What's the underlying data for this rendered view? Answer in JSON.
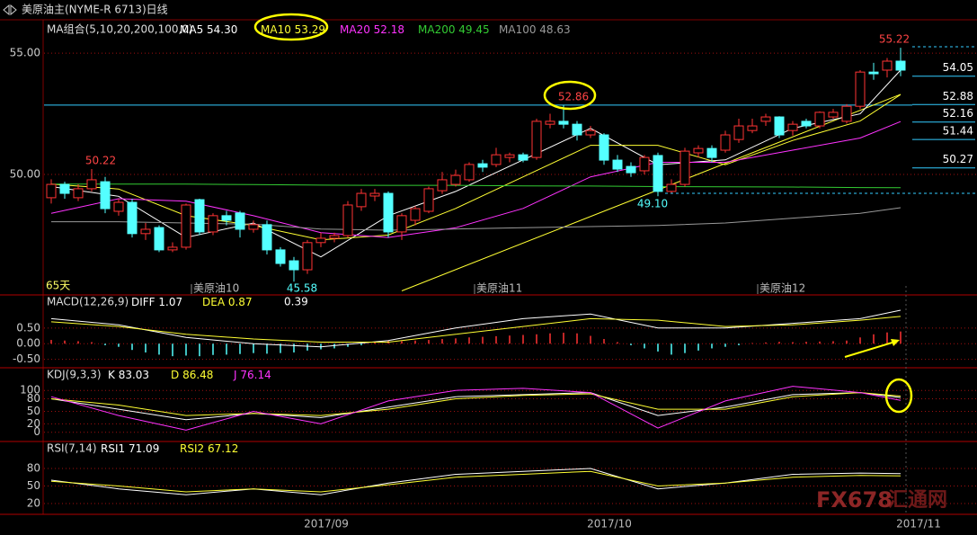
{
  "header": {
    "title": "美原油主(NYME-R 6713)日线"
  },
  "watermark": [
    "FX678",
    "汇通网"
  ],
  "x_labels": [
    "2017/09",
    "2017/10",
    "2017/11"
  ],
  "chart_data": [
    {
      "type": "candlestick",
      "legend_title": "MA组合(5,10,20,200,100,0)",
      "up_color": "#ff3333",
      "down_color": "#54ffff",
      "open": [
        49.04,
        49.59,
        49.04,
        49.41,
        49.7,
        48.48,
        48.85,
        47.56,
        47.81,
        46.89,
        47.0,
        48.96,
        47.63,
        48.3,
        48.41,
        47.74,
        47.93,
        46.89,
        46.44,
        46.07,
        47.19,
        47.37,
        47.48,
        48.67,
        49.11,
        49.22,
        47.63,
        48.11,
        48.48,
        49.33,
        49.59,
        49.78,
        50.44,
        50.41,
        50.7,
        50.81,
        50.7,
        52.07,
        52.19,
        52.07,
        51.63,
        51.63,
        50.59,
        50.33,
        50.15,
        50.78,
        49.3,
        49.59,
        50.89,
        51.07,
        51.0,
        51.44,
        51.81,
        52.19,
        52.37,
        51.81,
        52.19,
        52.0,
        52.37,
        52.19,
        52.81,
        54.22,
        54.3,
        54.67
      ],
      "high": [
        49.8,
        49.7,
        49.6,
        50.22,
        49.9,
        49.0,
        49.0,
        48.0,
        47.9,
        47.2,
        48.8,
        49.0,
        48.4,
        48.5,
        48.5,
        48.1,
        48.1,
        47.0,
        46.6,
        47.3,
        47.6,
        47.6,
        48.9,
        49.4,
        49.4,
        49.3,
        48.4,
        48.7,
        49.5,
        50.1,
        50.2,
        50.5,
        50.6,
        51.1,
        50.9,
        50.9,
        52.3,
        52.5,
        52.86,
        52.2,
        52.0,
        51.7,
        50.8,
        50.5,
        50.8,
        50.9,
        49.8,
        51.1,
        51.2,
        51.2,
        51.8,
        52.3,
        52.3,
        52.5,
        52.4,
        52.2,
        52.3,
        52.6,
        52.7,
        52.9,
        54.3,
        54.6,
        54.8,
        55.22
      ],
      "low": [
        48.8,
        49.0,
        48.9,
        49.3,
        48.4,
        48.3,
        47.4,
        47.3,
        46.8,
        46.8,
        46.9,
        47.5,
        47.5,
        47.9,
        47.4,
        47.6,
        46.7,
        46.2,
        45.58,
        45.9,
        47.0,
        47.2,
        47.4,
        48.5,
        48.9,
        47.4,
        47.3,
        47.9,
        48.4,
        49.2,
        49.5,
        49.7,
        50.1,
        50.3,
        50.5,
        50.5,
        50.6,
        51.9,
        51.9,
        51.4,
        51.5,
        50.4,
        50.1,
        49.9,
        50.0,
        49.1,
        49.2,
        49.5,
        50.7,
        50.5,
        50.9,
        51.3,
        51.7,
        52.0,
        51.5,
        51.6,
        51.9,
        51.9,
        52.3,
        52.1,
        52.7,
        53.9,
        54.0,
        54.05
      ],
      "close": [
        49.59,
        49.22,
        49.41,
        49.78,
        48.59,
        48.85,
        47.56,
        47.74,
        46.89,
        47.0,
        48.74,
        47.63,
        48.3,
        48.11,
        47.74,
        47.93,
        46.89,
        46.33,
        46.07,
        47.19,
        47.37,
        47.48,
        48.74,
        49.22,
        49.22,
        47.63,
        48.3,
        48.59,
        49.41,
        49.78,
        49.96,
        50.41,
        50.3,
        50.81,
        50.81,
        50.59,
        52.19,
        52.19,
        52.07,
        51.63,
        51.81,
        50.59,
        50.22,
        50.07,
        50.7,
        49.3,
        49.59,
        50.96,
        51.07,
        50.7,
        51.63,
        52.0,
        52.0,
        52.37,
        51.63,
        52.07,
        52.0,
        52.56,
        52.56,
        52.81,
        54.22,
        54.15,
        54.67,
        54.3
      ],
      "ylim": [
        45.07,
        56.19
      ],
      "yticks": [
        {
          "value": 50,
          "label": "50.00"
        },
        {
          "value": 55,
          "label": "55.00"
        }
      ],
      "lines": [
        {
          "name": "MA5",
          "legend_value": "54.30",
          "color": "#ffffff",
          "x": [
            0,
            5,
            10,
            15,
            20,
            25,
            30,
            35,
            40,
            45,
            50,
            55,
            60,
            63
          ],
          "values": [
            49.5,
            49.1,
            47.4,
            48.0,
            46.6,
            48.3,
            49.3,
            50.6,
            51.9,
            50.4,
            50.6,
            51.9,
            52.5,
            54.3
          ]
        },
        {
          "name": "MA10",
          "legend_value": "53.29",
          "color": "#ffff33",
          "x": [
            0,
            5,
            10,
            15,
            20,
            25,
            30,
            35,
            40,
            45,
            50,
            55,
            60,
            63
          ],
          "values": [
            49.6,
            49.4,
            48.3,
            47.9,
            47.3,
            47.5,
            48.6,
            49.9,
            51.2,
            51.2,
            50.4,
            51.4,
            52.2,
            53.29
          ]
        },
        {
          "name": "MA20",
          "legend_value": "52.18",
          "color": "#ff33ff",
          "x": [
            0,
            5,
            10,
            15,
            20,
            25,
            30,
            35,
            40,
            45,
            50,
            55,
            60,
            63
          ],
          "values": [
            48.4,
            49.0,
            48.9,
            48.3,
            47.6,
            47.4,
            47.8,
            48.6,
            49.9,
            50.5,
            50.5,
            51.0,
            51.5,
            52.18
          ]
        },
        {
          "name": "MA200",
          "legend_value": "49.45",
          "color": "#33cc33",
          "x": [
            0,
            5,
            10,
            15,
            20,
            25,
            30,
            35,
            40,
            45,
            50,
            55,
            60,
            63
          ],
          "values": [
            49.6,
            49.6,
            49.6,
            49.58,
            49.56,
            49.55,
            49.55,
            49.53,
            49.52,
            49.5,
            49.49,
            49.48,
            49.46,
            49.45
          ]
        },
        {
          "name": "MA100",
          "legend_value": "48.63",
          "color": "#999999",
          "x": [
            0,
            5,
            10,
            15,
            20,
            25,
            30,
            35,
            40,
            45,
            50,
            55,
            60,
            63
          ],
          "values": [
            48.05,
            48.05,
            48.0,
            47.95,
            47.75,
            47.7,
            47.75,
            47.8,
            47.85,
            47.9,
            48.0,
            48.2,
            48.4,
            48.63
          ]
        }
      ],
      "annotations": [
        "50.22",
        "52.86",
        "55.22",
        "49.10",
        "45.58"
      ],
      "period_label": "65天",
      "month_labels": [
        "美原油10",
        "美原油11",
        "美原油12"
      ],
      "levels": [
        54.05,
        52.88,
        52.16,
        51.44,
        50.27
      ],
      "levels_color": "#33ccff",
      "hline": 52.86,
      "trendline": {
        "color": "#ffff33",
        "x": [
          26,
          63
        ],
        "values": [
          45.2,
          53.3
        ]
      }
    },
    {
      "type": "macd",
      "title": "MACD(12,26,9)",
      "ylim": [
        -0.74,
        1.5
      ],
      "yticks": [
        {
          "value": -0.5,
          "label": "-0.50"
        },
        {
          "value": 0,
          "label": "0.00"
        },
        {
          "value": 0.5,
          "label": "0.50"
        }
      ],
      "lines": [
        {
          "name": "DIFF",
          "legend_value": "1.07",
          "color": "#ffffff",
          "x": [
            0,
            5,
            10,
            15,
            20,
            25,
            30,
            35,
            40,
            45,
            50,
            55,
            60,
            63
          ],
          "values": [
            0.8,
            0.6,
            0.2,
            0.0,
            -0.1,
            0.1,
            0.5,
            0.8,
            0.95,
            0.5,
            0.5,
            0.65,
            0.8,
            1.07
          ]
        },
        {
          "name": "DEA",
          "legend_value": "0.87",
          "color": "#ffff33",
          "x": [
            0,
            5,
            10,
            15,
            20,
            25,
            30,
            35,
            40,
            45,
            50,
            55,
            60,
            63
          ],
          "values": [
            0.7,
            0.55,
            0.3,
            0.15,
            0.05,
            0.05,
            0.3,
            0.55,
            0.8,
            0.75,
            0.55,
            0.6,
            0.75,
            0.87
          ]
        }
      ],
      "histogram": {
        "legend_value": "0.39",
        "up_color": "#ff3333",
        "down_color": "#54ffff",
        "values": [
          0.12,
          0.1,
          0.08,
          0.05,
          -0.05,
          -0.1,
          -0.2,
          -0.28,
          -0.35,
          -0.4,
          -0.38,
          -0.4,
          -0.36,
          -0.35,
          -0.33,
          -0.3,
          -0.32,
          -0.3,
          -0.28,
          -0.22,
          -0.18,
          -0.15,
          -0.1,
          -0.05,
          0.05,
          0.1,
          0.08,
          0.1,
          0.12,
          0.15,
          0.17,
          0.2,
          0.22,
          0.24,
          0.26,
          0.28,
          0.3,
          0.33,
          0.35,
          0.33,
          0.25,
          0.15,
          0.05,
          -0.05,
          -0.15,
          -0.25,
          -0.35,
          -0.3,
          -0.22,
          -0.15,
          -0.1,
          -0.05,
          0.02,
          0.04,
          0.06,
          0.05,
          0.06,
          0.07,
          0.08,
          0.1,
          0.2,
          0.3,
          0.36,
          0.39
        ]
      }
    },
    {
      "type": "line",
      "title": "KDJ(9,3,3)",
      "ylim": [
        -20,
        150
      ],
      "yticks": [
        0,
        20,
        50,
        80,
        100
      ],
      "lines": [
        {
          "name": "K",
          "legend_value": "83.03",
          "color": "#ffffff",
          "x": [
            0,
            5,
            10,
            15,
            20,
            25,
            30,
            35,
            40,
            45,
            50,
            55,
            60,
            63
          ],
          "values": [
            80,
            55,
            30,
            45,
            35,
            60,
            85,
            90,
            95,
            40,
            60,
            90,
            95,
            83.03
          ]
        },
        {
          "name": "D",
          "legend_value": "86.48",
          "color": "#ffff33",
          "x": [
            0,
            5,
            10,
            15,
            20,
            25,
            30,
            35,
            40,
            45,
            50,
            55,
            60,
            63
          ],
          "values": [
            80,
            65,
            40,
            45,
            40,
            55,
            80,
            88,
            92,
            55,
            55,
            85,
            95,
            86.48
          ]
        },
        {
          "name": "J",
          "legend_value": "76.14",
          "color": "#ff33ff",
          "x": [
            0,
            5,
            10,
            15,
            20,
            25,
            30,
            35,
            40,
            45,
            50,
            55,
            60,
            63
          ],
          "values": [
            85,
            40,
            5,
            50,
            20,
            75,
            100,
            105,
            95,
            10,
            75,
            110,
            95,
            76.14
          ]
        }
      ]
    },
    {
      "type": "line",
      "title": "RSI(7,14)",
      "ylim": [
        3,
        123
      ],
      "yticks": [
        20,
        50,
        80
      ],
      "lines": [
        {
          "name": "RSI1",
          "legend_value": "71.09",
          "color": "#ffffff",
          "x": [
            0,
            5,
            10,
            15,
            20,
            25,
            30,
            35,
            40,
            45,
            50,
            55,
            60,
            63
          ],
          "values": [
            60,
            45,
            35,
            45,
            35,
            55,
            70,
            75,
            80,
            45,
            55,
            70,
            72,
            71.09
          ]
        },
        {
          "name": "RSI2",
          "legend_value": "67.12",
          "color": "#ffff33",
          "x": [
            0,
            5,
            10,
            15,
            20,
            25,
            30,
            35,
            40,
            45,
            50,
            55,
            60,
            63
          ],
          "values": [
            58,
            50,
            40,
            45,
            40,
            52,
            65,
            70,
            75,
            50,
            55,
            65,
            68,
            67.12
          ]
        }
      ]
    }
  ]
}
